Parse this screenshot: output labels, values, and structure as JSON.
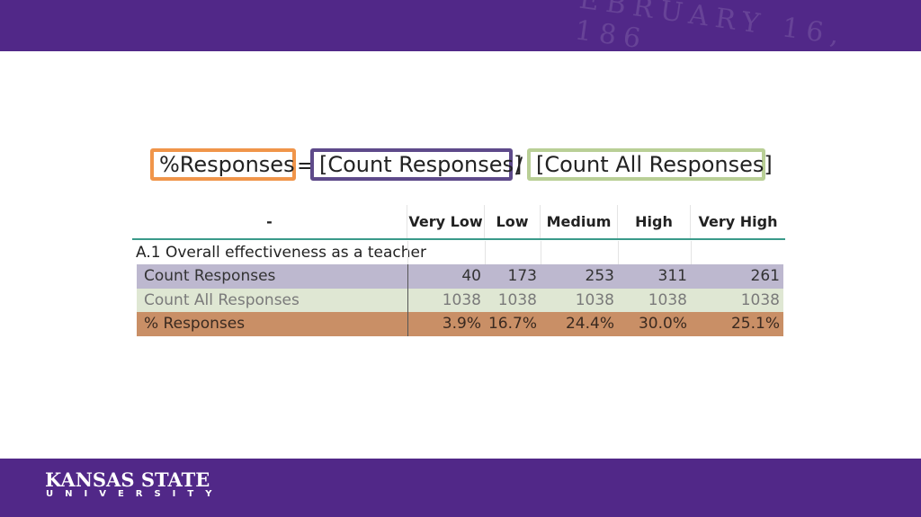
{
  "seal_text": "EBRUARY 16, 186",
  "formula": {
    "result": "%Responses",
    "equals": "=",
    "numerator": "[Count Responses]",
    "divide": "/",
    "denominator": "[Count All Responses]"
  },
  "table": {
    "header": [
      "-",
      "Very Low",
      "Low",
      "Medium",
      "High",
      "Very High"
    ],
    "section": "A.1 Overall effectiveness as a teacher",
    "rows": [
      [
        "Count Responses",
        40,
        173,
        253,
        311,
        261
      ],
      [
        "Count All Responses",
        1038,
        1038,
        1038,
        1038,
        1038
      ],
      [
        "% Responses",
        "3.9%",
        "16.7%",
        "24.4%",
        "30.0%",
        "25.1%"
      ]
    ]
  },
  "footer": {
    "logo_line1": "KANSAS STATE",
    "logo_line2": "UNIVERSITY"
  }
}
